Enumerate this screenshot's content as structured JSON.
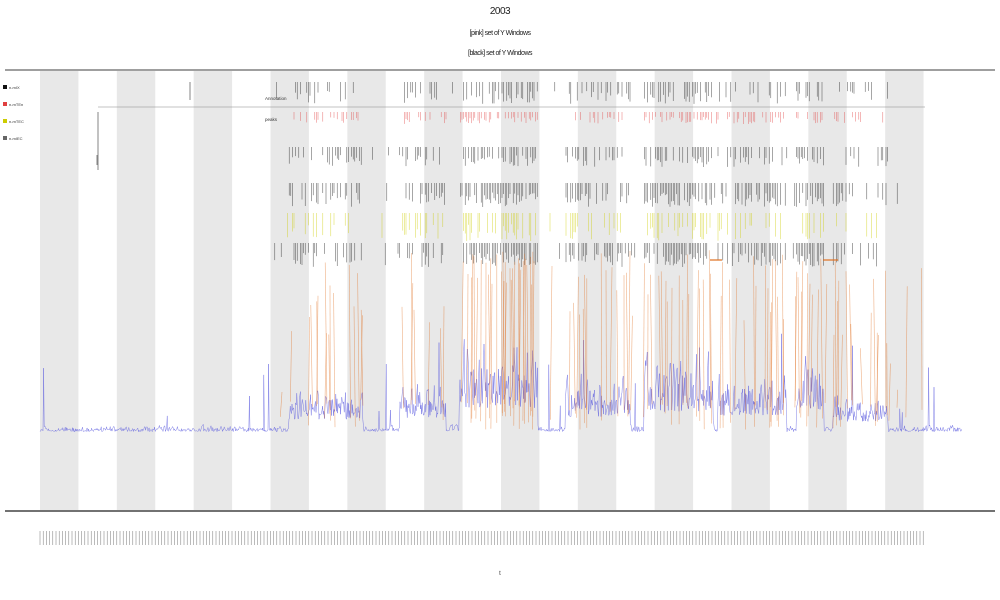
{
  "header": {
    "title": "2003",
    "subtitle_1": "[pink] set of Y Windows",
    "subtitle_2": "[black] set of Y Windows"
  },
  "chart_data": {
    "type": "line",
    "title": "2003",
    "xlabel": "t",
    "ylabel": "",
    "legend": {
      "placement": "top-left",
      "entries": [
        "n-mIX",
        "n-mTEn",
        "n-mTEC",
        "n-mIEC"
      ]
    },
    "track_labels": [
      "Annotation",
      "peaks"
    ],
    "band_count": 12,
    "series": [
      {
        "kind": "background",
        "color": "#5555dd",
        "amplitude": 0.18
      },
      {
        "kind": "overlay",
        "color": "#e07020",
        "amplitude": 1.0
      }
    ],
    "bursts": [
      {
        "start": 0.27,
        "end": 0.35,
        "strength": 0.55
      },
      {
        "start": 0.39,
        "end": 0.44,
        "strength": 0.6
      },
      {
        "start": 0.455,
        "end": 0.54,
        "strength": 1.0
      },
      {
        "start": 0.57,
        "end": 0.64,
        "strength": 0.65
      },
      {
        "start": 0.655,
        "end": 0.73,
        "strength": 0.85
      },
      {
        "start": 0.735,
        "end": 0.81,
        "strength": 0.7
      },
      {
        "start": 0.82,
        "end": 0.85,
        "strength": 0.9
      },
      {
        "start": 0.86,
        "end": 0.92,
        "strength": 0.45
      }
    ],
    "colors": {
      "background": "#5555dd",
      "overlay": "#e07020",
      "band": "#e8e8e8",
      "red_marks": "#e04040",
      "yellow_marks": "#cccc00",
      "black_marks": "#111111"
    },
    "grid": false
  }
}
